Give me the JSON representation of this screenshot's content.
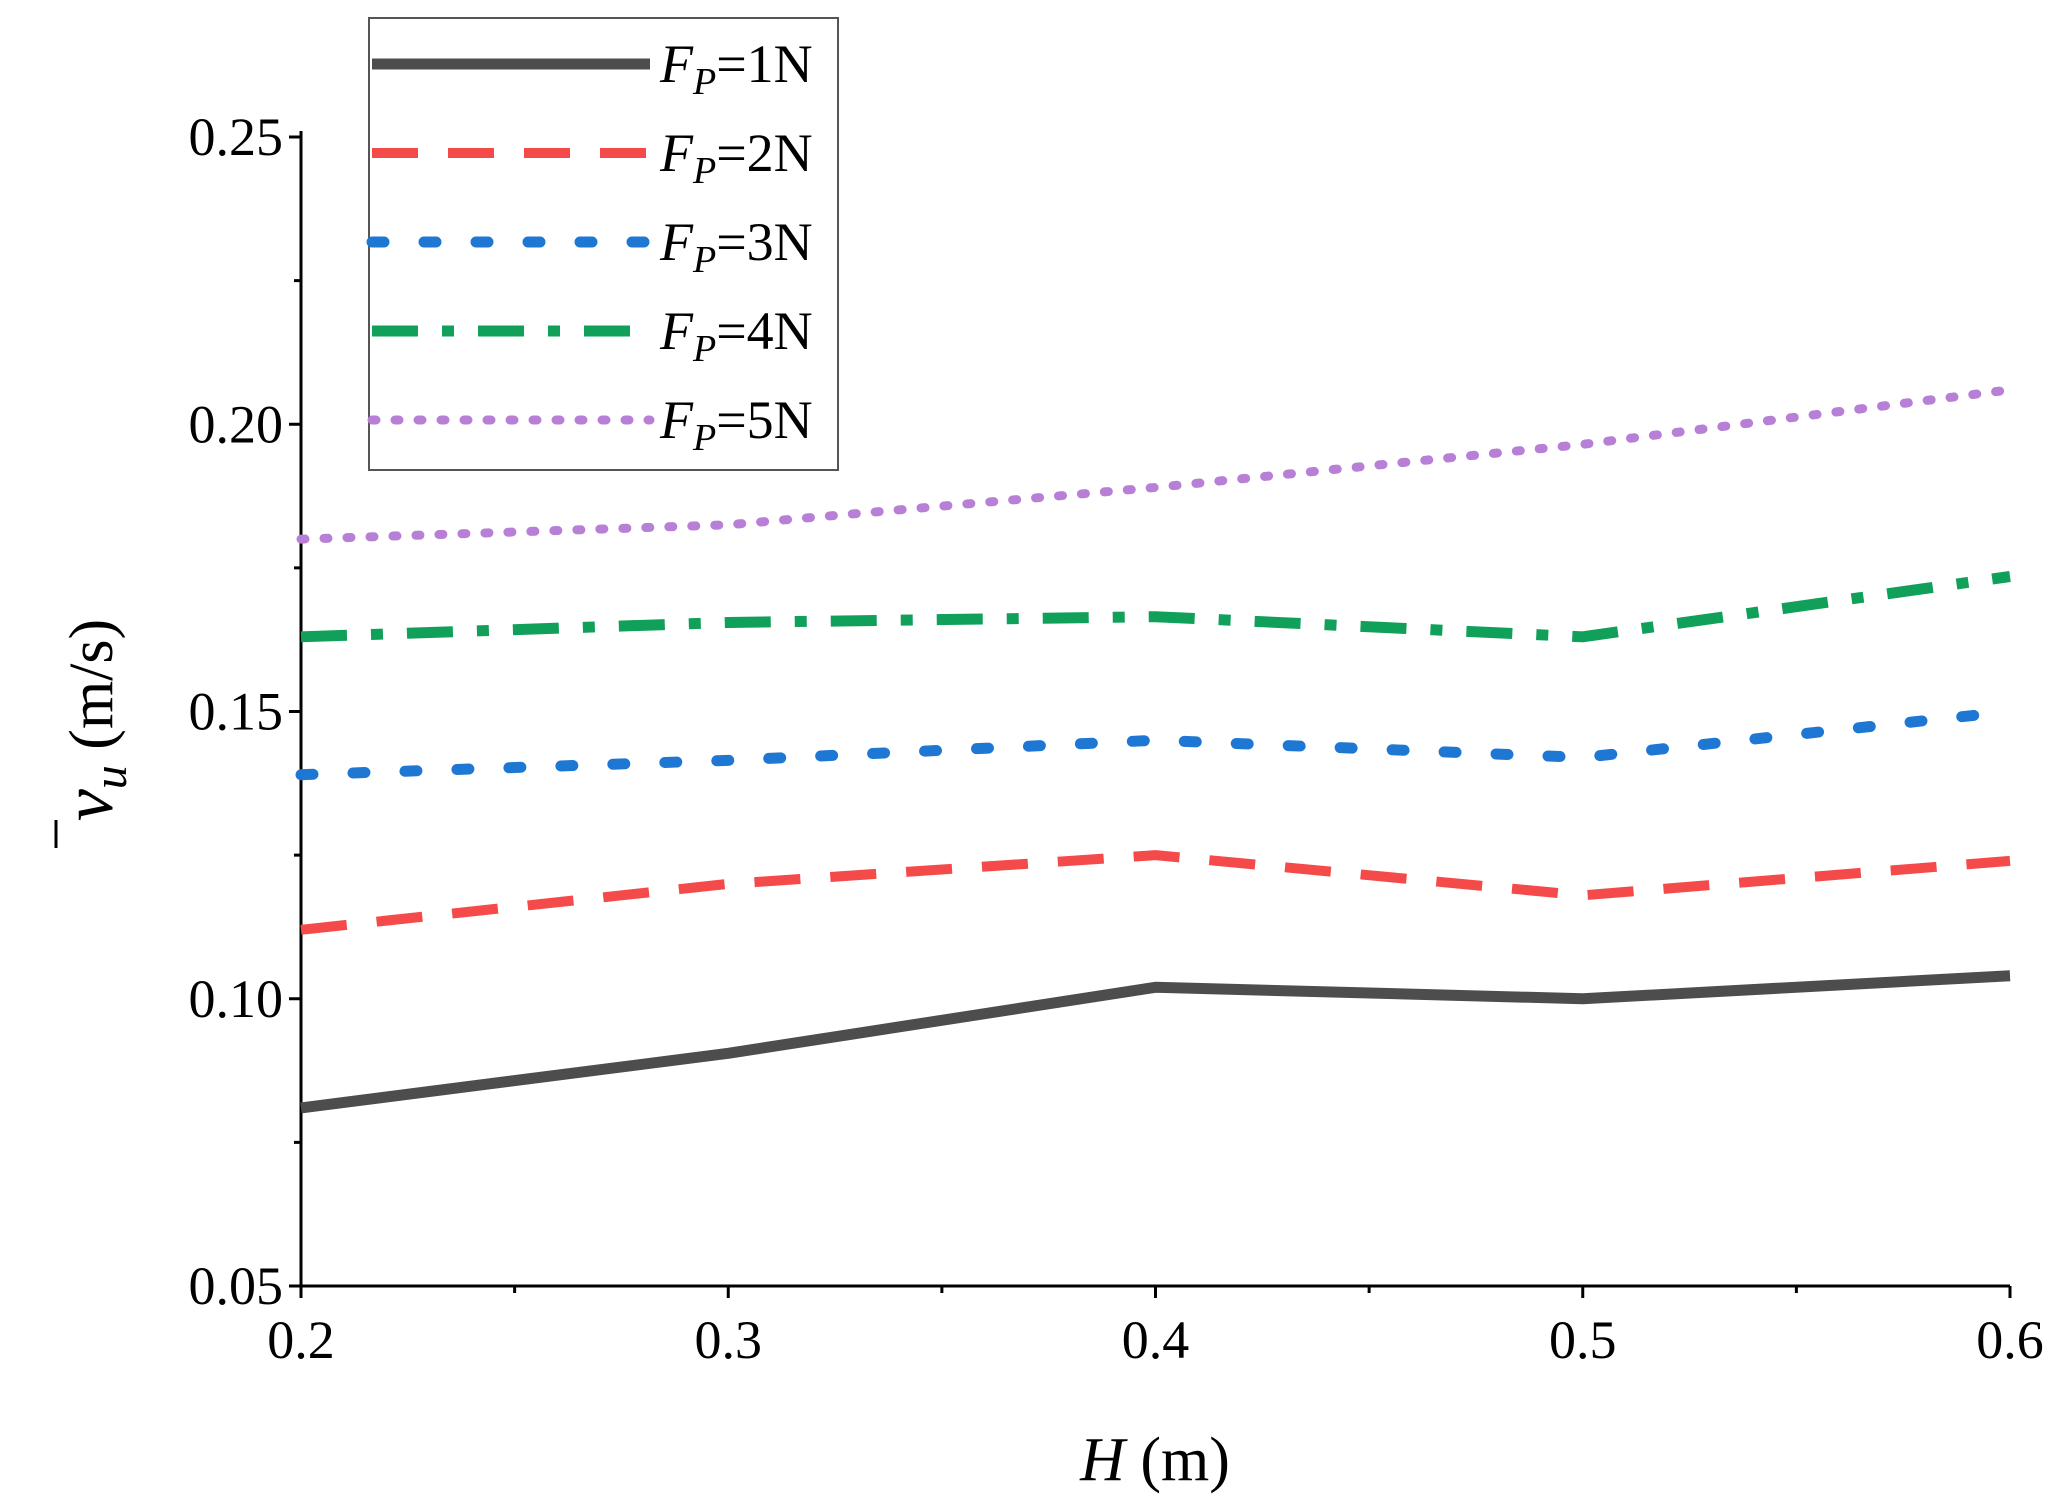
{
  "chart_data": {
    "type": "line",
    "xlabel": "H (m)",
    "xlabel_var": "H",
    "xlabel_unit": " (m)",
    "ylabel_var": "v",
    "ylabel_sub": "u",
    "ylabel_unit": " (m/s)",
    "xlim": [
      0.2,
      0.6
    ],
    "ylim": [
      0.05,
      0.25
    ],
    "xticks": [
      "0.2",
      "0.3",
      "0.4",
      "0.5",
      "0.6"
    ],
    "yticks": [
      "0.05",
      "0.10",
      "0.15",
      "0.20",
      "0.25"
    ],
    "grid": false,
    "legend_placement": "top-left",
    "x": [
      0.2,
      0.3,
      0.4,
      0.5,
      0.6
    ],
    "series": [
      {
        "name": "FP=1N",
        "label_var": "F",
        "label_sub": "P",
        "label_val": "=1N",
        "color": "#4d4d4d",
        "style": "solid",
        "values": [
          0.081,
          0.0905,
          0.102,
          0.1,
          0.104
        ]
      },
      {
        "name": "FP=2N",
        "label_var": "F",
        "label_sub": "P",
        "label_val": "=2N",
        "color": "#f44a4a",
        "style": "dash",
        "values": [
          0.112,
          0.12,
          0.125,
          0.118,
          0.124
        ]
      },
      {
        "name": "FP=3N",
        "label_var": "F",
        "label_sub": "P",
        "label_val": "=3N",
        "color": "#1f77d4",
        "style": "dot",
        "values": [
          0.139,
          0.1415,
          0.145,
          0.142,
          0.15
        ]
      },
      {
        "name": "FP=4N",
        "label_var": "F",
        "label_sub": "P",
        "label_val": "=4N",
        "color": "#11a05a",
        "style": "dashdot",
        "values": [
          0.163,
          0.1655,
          0.1665,
          0.163,
          0.1735
        ]
      },
      {
        "name": "FP=5N",
        "label_var": "F",
        "label_sub": "P",
        "label_val": "=5N",
        "color": "#b77fd6",
        "style": "shortdot",
        "values": [
          0.18,
          0.1825,
          0.189,
          0.1965,
          0.206
        ]
      }
    ]
  }
}
